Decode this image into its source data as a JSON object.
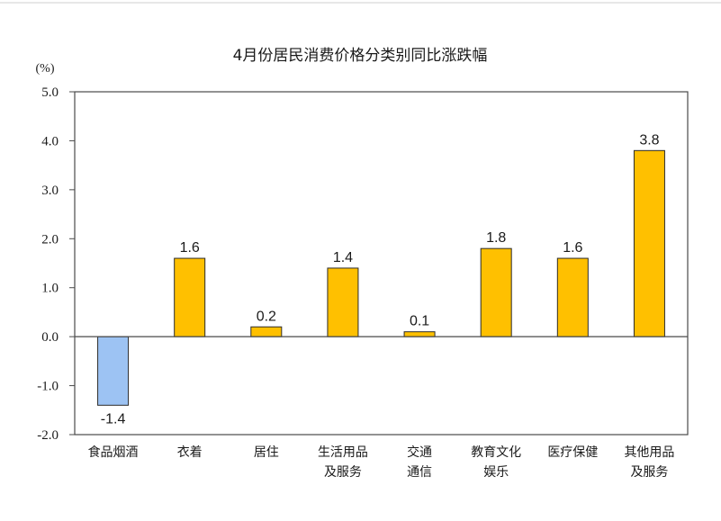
{
  "chart_data": {
    "type": "bar",
    "title": "4月份居民消费价格分类别同比涨跌幅",
    "unit_label": "(%)",
    "categories": [
      [
        "食品烟酒"
      ],
      [
        "衣着"
      ],
      [
        "居住"
      ],
      [
        "生活用品",
        "及服务"
      ],
      [
        "交通",
        "通信"
      ],
      [
        "教育文化",
        "娱乐"
      ],
      [
        "医疗保健"
      ],
      [
        "其他用品",
        "及服务"
      ]
    ],
    "values": [
      -1.4,
      1.6,
      0.2,
      1.4,
      0.1,
      1.8,
      1.6,
      3.8
    ],
    "data_labels": [
      "-1.4",
      "1.6",
      "0.2",
      "1.4",
      "0.1",
      "1.8",
      "1.6",
      "3.8"
    ],
    "ylim": [
      -2.0,
      5.0
    ],
    "yticks": [
      5.0,
      4.0,
      3.0,
      2.0,
      1.0,
      0.0,
      -1.0,
      -2.0
    ],
    "ytick_labels": [
      "5.0",
      "4.0",
      "3.0",
      "2.0",
      "1.0",
      "0.0",
      "-1.0",
      "-2.0"
    ],
    "grid": false,
    "legend": "none",
    "colors": {
      "positive": "#FFC000",
      "negative": "#9DC3F3",
      "bar_edge": "#2b2b2b",
      "axis": "#4a4a4a"
    }
  }
}
